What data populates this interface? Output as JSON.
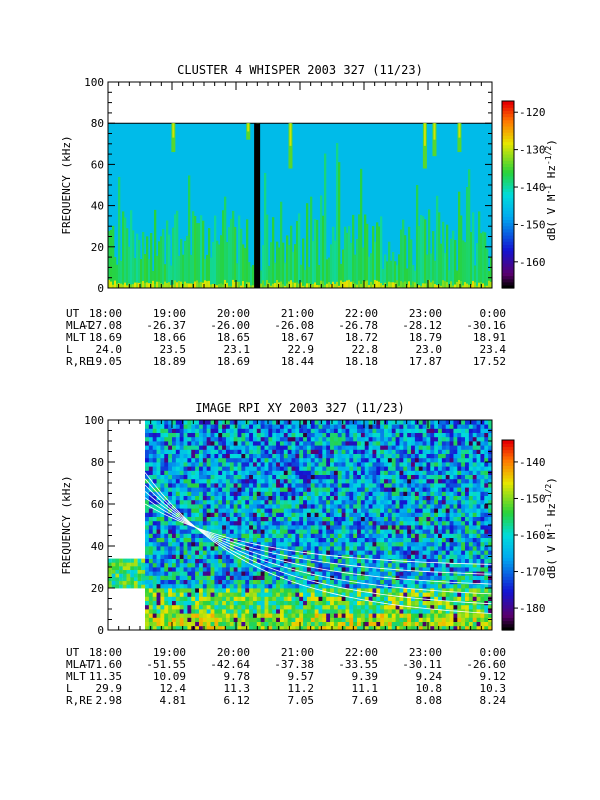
{
  "chart_data": [
    {
      "type": "heatmap",
      "title": "CLUSTER 4 WHISPER 2003 327 (11/23)",
      "ylabel": "FREQUENCY (kHz)",
      "ylim": [
        0,
        100
      ],
      "yticks": [
        "0",
        "20",
        "40",
        "60",
        "80",
        "100"
      ],
      "colorbar": {
        "label": "dB( V M⁻¹ Hz⁻¹ᐟ²)",
        "label_parts": {
          "a": "dB( V M",
          "b": "-1",
          "c": " Hz",
          "d": "-1/2",
          "e": ")"
        },
        "ticks": [
          "-120",
          "-130",
          "-140",
          "-150",
          "-160"
        ],
        "range": [
          -167,
          -117
        ]
      },
      "background_dB": -147,
      "upper_cutoff_kHz": 80,
      "data_gap_time": "20:17",
      "eph_rows": [
        {
          "label": "UT",
          "values": [
            "18:00",
            "19:00",
            "20:00",
            "21:00",
            "22:00",
            "23:00",
            "0:00"
          ]
        },
        {
          "label": "MLAT",
          "values": [
            "-27.08",
            "-26.37",
            "-26.00",
            "-26.08",
            "-26.78",
            "-28.12",
            "-30.16"
          ]
        },
        {
          "label": "MLT",
          "values": [
            "18.69",
            "18.66",
            "18.65",
            "18.67",
            "18.72",
            "18.79",
            "18.91"
          ]
        },
        {
          "label": "L",
          "values": [
            "24.0",
            "23.5",
            "23.1",
            "22.9",
            "22.8",
            "23.0",
            "23.4"
          ]
        },
        {
          "label": "R,RE",
          "values": [
            "19.05",
            "18.89",
            "18.69",
            "18.44",
            "18.18",
            "17.87",
            "17.52"
          ]
        }
      ]
    },
    {
      "type": "heatmap",
      "title": "IMAGE RPI XY 2003 327 (11/23)",
      "ylabel": "FREQUENCY (kHz)",
      "ylim": [
        0,
        100
      ],
      "yticks": [
        "0",
        "20",
        "40",
        "60",
        "80",
        "100"
      ],
      "colorbar": {
        "label_parts": {
          "a": "dB( V M",
          "b": "-1",
          "c": " Hz",
          "d": "-1/2",
          "e": ")"
        },
        "ticks": [
          "-140",
          "-150",
          "-160",
          "-170",
          "-180"
        ],
        "range": [
          -186,
          -134
        ]
      },
      "eph_rows": [
        {
          "label": "UT",
          "values": [
            "18:00",
            "19:00",
            "20:00",
            "21:00",
            "22:00",
            "23:00",
            "0:00"
          ]
        },
        {
          "label": "MLAT",
          "values": [
            "-71.60",
            "-51.55",
            "-42.64",
            "-37.38",
            "-33.55",
            "-30.11",
            "-26.60"
          ]
        },
        {
          "label": "MLT",
          "values": [
            "11.35",
            "10.09",
            "9.78",
            "9.57",
            "9.39",
            "9.24",
            "9.12"
          ]
        },
        {
          "label": "L",
          "values": [
            "29.9",
            "12.4",
            "11.3",
            "11.2",
            "11.1",
            "10.8",
            "10.3"
          ]
        },
        {
          "label": "R,RE",
          "values": [
            "2.98",
            "4.81",
            "6.12",
            "7.05",
            "7.69",
            "8.08",
            "8.24"
          ]
        }
      ]
    }
  ]
}
